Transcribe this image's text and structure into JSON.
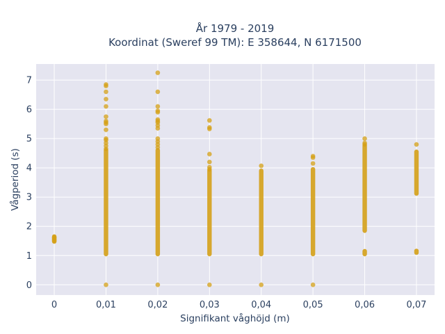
{
  "chart_data": {
    "type": "scatter",
    "title_line1": "År 1979 - 2019",
    "title_line2": "Koordinat (Sweref 99 TM): E 358644, N 6171500",
    "xlabel": "Signifikant våghöjd (m)",
    "ylabel": "Vågperiod (s)",
    "x_tick_labels": [
      "0",
      "0,01",
      "0,02",
      "0,03",
      "0,04",
      "0,05",
      "0,06",
      "0,07"
    ],
    "x_tick_values": [
      0,
      0.01,
      0.02,
      0.03,
      0.04,
      0.05,
      0.06,
      0.07
    ],
    "y_tick_labels": [
      "0",
      "1",
      "2",
      "3",
      "4",
      "5",
      "6",
      "7"
    ],
    "y_tick_values": [
      0,
      1,
      2,
      3,
      4,
      5,
      6,
      7
    ],
    "xlim": [
      -0.0035,
      0.0735
    ],
    "ylim": [
      -0.35,
      7.55
    ],
    "grid": true,
    "marker_color": "#D4A017",
    "plot_bgcolor": "#E5E5F0",
    "series": [
      {
        "columns": [
          {
            "x": 0,
            "ranges": [
              [
                1.48,
                1.65
              ]
            ],
            "points": [
              1.5,
              1.55,
              1.6,
              1.63
            ]
          },
          {
            "x": 0.01,
            "ranges": [
              [
                1.05,
                4.6
              ]
            ],
            "points": [
              0,
              4.65,
              4.75,
              4.85,
              4.95,
              5.0,
              5.3,
              5.5,
              5.55,
              5.6,
              5.75,
              6.1,
              6.35,
              6.6,
              6.8,
              6.85
            ]
          },
          {
            "x": 0.02,
            "ranges": [
              [
                1.05,
                4.6
              ]
            ],
            "points": [
              0,
              4.7,
              4.8,
              4.9,
              5.0,
              5.35,
              5.45,
              5.55,
              5.6,
              5.65,
              5.9,
              5.95,
              6.1,
              6.6,
              7.25
            ]
          },
          {
            "x": 0.03,
            "ranges": [
              [
                1.05,
                3.9
              ]
            ],
            "points": [
              0,
              3.95,
              4.02,
              4.2,
              4.47,
              5.33,
              5.38,
              5.62
            ]
          },
          {
            "x": 0.04,
            "ranges": [
              [
                1.05,
                3.9
              ]
            ],
            "points": [
              0,
              4.07
            ]
          },
          {
            "x": 0.05,
            "ranges": [
              [
                1.05,
                3.95
              ]
            ],
            "points": [
              0,
              4.15,
              4.35,
              4.4
            ]
          },
          {
            "x": 0.06,
            "ranges": [
              [
                1.05,
                1.15
              ],
              [
                1.85,
                4.75
              ]
            ],
            "points": [
              4.8,
              4.85,
              5.0
            ]
          },
          {
            "x": 0.07,
            "ranges": [
              [
                1.1,
                1.16
              ],
              [
                3.12,
                4.55
              ]
            ],
            "points": [
              4.8
            ]
          }
        ]
      }
    ]
  }
}
